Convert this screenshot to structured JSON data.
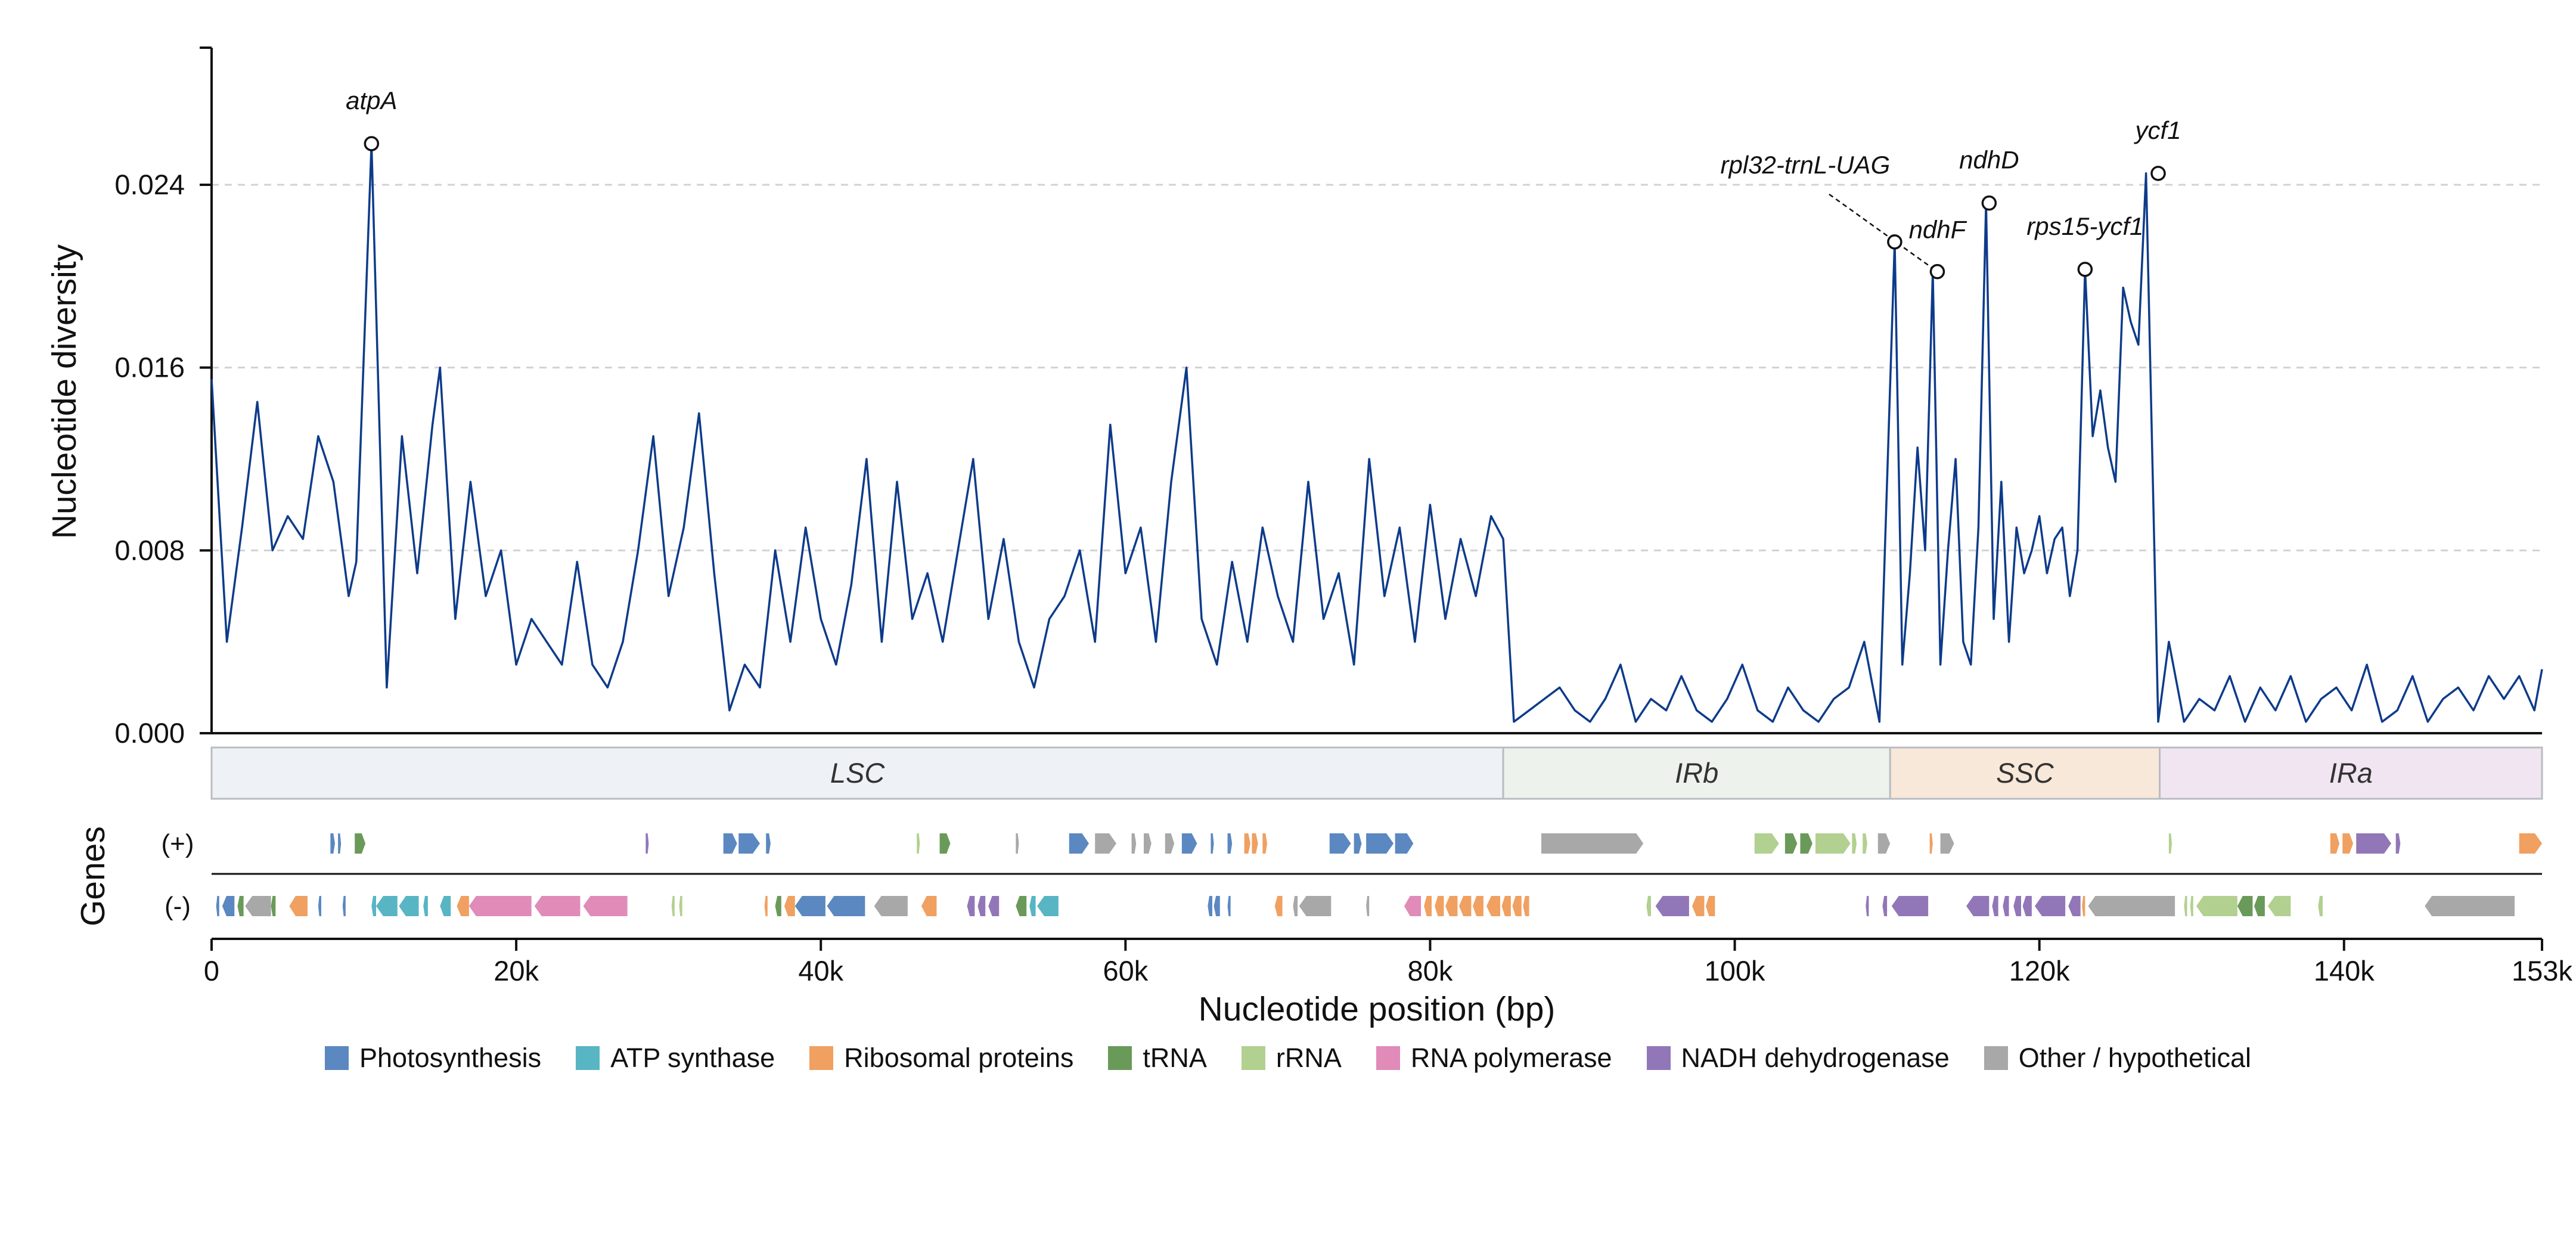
{
  "chart_data": {
    "type": "line",
    "title": "",
    "xlabel": "Nucleotide position (bp)",
    "ylabel": "Nucleotide diversity",
    "xlim": [
      0,
      153000
    ],
    "ylim": [
      0,
      0.03
    ],
    "x_ticks": [
      0,
      20000,
      40000,
      60000,
      80000,
      100000,
      120000,
      140000,
      153000
    ],
    "x_tick_labels": [
      "0",
      "20k",
      "40k",
      "60k",
      "80k",
      "100k",
      "120k",
      "140k",
      "153k"
    ],
    "y_ticks": [
      0,
      0.008,
      0.016,
      0.024
    ],
    "y_tick_labels": [
      "0.000",
      "0.008",
      "0.016",
      "0.024"
    ],
    "grid": "horizontal dashed",
    "series": [
      {
        "x": [
          0,
          1000,
          2000,
          3000,
          4000,
          5000,
          6000,
          7000,
          8000,
          9000,
          9500,
          10500,
          11500,
          12500,
          13500,
          14500,
          15000,
          16000,
          17000,
          18000,
          19000,
          20000,
          21000,
          22000,
          23000,
          24000,
          25000,
          26000,
          27000,
          28000,
          29000,
          30000,
          31000,
          32000,
          33000,
          34000,
          35000,
          36000,
          37000,
          38000,
          39000,
          40000,
          41000,
          42000,
          43000,
          44000,
          45000,
          46000,
          47000,
          48000,
          49000,
          50000,
          51000,
          52000,
          53000,
          54000,
          55000,
          56000,
          57000,
          58000,
          59000,
          60000,
          61000,
          62000,
          63000,
          64000,
          65000,
          66000,
          67000,
          68000,
          69000,
          70000,
          71000,
          72000,
          73000,
          74000,
          75000,
          76000,
          77000,
          78000,
          79000,
          80000,
          81000,
          82000,
          83000,
          84000,
          84800,
          85500,
          86500,
          87500,
          88500,
          89500,
          90500,
          91500,
          92500,
          93500,
          94500,
          95500,
          96500,
          97500,
          98500,
          99500,
          100500,
          101500,
          102500,
          103500,
          104500,
          105500,
          106500,
          107500,
          108500,
          109500,
          110500,
          111000,
          111500,
          112000,
          112500,
          113000,
          113500,
          114000,
          114500,
          115000,
          115500,
          116000,
          116500,
          117000,
          117500,
          118000,
          118500,
          119000,
          119500,
          120000,
          120500,
          121000,
          121500,
          122000,
          122500,
          123000,
          123500,
          124000,
          124500,
          125000,
          125500,
          126000,
          126500,
          127000,
          127800,
          128500,
          129500,
          130500,
          131500,
          132500,
          133500,
          134500,
          135500,
          136500,
          137500,
          138500,
          139500,
          140500,
          141500,
          142500,
          143500,
          144500,
          145500,
          146500,
          147500,
          148500,
          149500,
          150500,
          151500,
          152500,
          153000
        ],
        "y": [
          0.0155,
          0.004,
          0.009,
          0.0145,
          0.008,
          0.0095,
          0.0085,
          0.013,
          0.011,
          0.006,
          0.0075,
          0.0258,
          0.002,
          0.013,
          0.007,
          0.0135,
          0.016,
          0.005,
          0.011,
          0.006,
          0.008,
          0.003,
          0.005,
          0.004,
          0.003,
          0.0075,
          0.003,
          0.002,
          0.004,
          0.008,
          0.013,
          0.006,
          0.009,
          0.014,
          0.007,
          0.001,
          0.003,
          0.002,
          0.008,
          0.004,
          0.009,
          0.005,
          0.003,
          0.0065,
          0.012,
          0.004,
          0.011,
          0.005,
          0.007,
          0.004,
          0.008,
          0.012,
          0.005,
          0.0085,
          0.004,
          0.002,
          0.005,
          0.006,
          0.008,
          0.004,
          0.0135,
          0.007,
          0.009,
          0.004,
          0.011,
          0.016,
          0.005,
          0.003,
          0.0075,
          0.004,
          0.009,
          0.006,
          0.004,
          0.011,
          0.005,
          0.007,
          0.003,
          0.012,
          0.006,
          0.009,
          0.004,
          0.01,
          0.005,
          0.0085,
          0.006,
          0.0095,
          0.0085,
          0.0005,
          0.001,
          0.0015,
          0.002,
          0.001,
          0.0005,
          0.0015,
          0.003,
          0.0005,
          0.0015,
          0.001,
          0.0025,
          0.001,
          0.0005,
          0.0015,
          0.003,
          0.001,
          0.0005,
          0.002,
          0.001,
          0.0005,
          0.0015,
          0.002,
          0.004,
          0.0005,
          0.0215,
          0.003,
          0.007,
          0.0125,
          0.008,
          0.0202,
          0.003,
          0.008,
          0.012,
          0.004,
          0.003,
          0.009,
          0.0232,
          0.005,
          0.011,
          0.004,
          0.009,
          0.007,
          0.008,
          0.0095,
          0.007,
          0.0085,
          0.009,
          0.006,
          0.008,
          0.0203,
          0.013,
          0.015,
          0.0125,
          0.011,
          0.0195,
          0.018,
          0.017,
          0.0245,
          0.0005,
          0.004,
          0.0005,
          0.0015,
          0.001,
          0.0025,
          0.0005,
          0.002,
          0.001,
          0.0025,
          0.0005,
          0.0015,
          0.002,
          0.001,
          0.003,
          0.0005,
          0.001,
          0.0025,
          0.0005,
          0.0015,
          0.002,
          0.001,
          0.0025,
          0.0015,
          0.0025,
          0.001,
          0.0028
        ]
      }
    ],
    "peaks": [
      {
        "label": "atpA",
        "x": 10500,
        "y": 0.0258
      },
      {
        "label": "rpl32-trnL-UAG",
        "x": 110500,
        "y": 0.0215
      },
      {
        "label": "ndhF",
        "x": 113300,
        "y": 0.0202
      },
      {
        "label": "ndhD",
        "x": 116700,
        "y": 0.0232
      },
      {
        "label": "rps15-ycf1",
        "x": 123000,
        "y": 0.0203
      },
      {
        "label": "ycf1",
        "x": 127800,
        "y": 0.0245
      }
    ],
    "regions": [
      {
        "label": "LSC",
        "start": 0,
        "end": 84800,
        "color": "#eef2f6"
      },
      {
        "label": "IRb",
        "start": 84800,
        "end": 110200,
        "color": "#edf3ec"
      },
      {
        "label": "SSC",
        "start": 110200,
        "end": 127900,
        "color": "#f8e8d9"
      },
      {
        "label": "IRa",
        "start": 127900,
        "end": 153000,
        "color": "#f0e5f0"
      }
    ],
    "genes_axis_label": "Genes",
    "strand_labels": {
      "plus": "(+)",
      "minus": "(-)"
    },
    "gene_categories": [
      {
        "name": "Photosynthesis",
        "color": "#5b88c0"
      },
      {
        "name": "ATP synthase",
        "color": "#58b5c4"
      },
      {
        "name": "Ribosomal proteins",
        "color": "#f0a061"
      },
      {
        "name": "tRNA",
        "color": "#6a9a59"
      },
      {
        "name": "rRNA",
        "color": "#b2d08f"
      },
      {
        "name": "RNA polymerase",
        "color": "#e08bb8"
      },
      {
        "name": "NADH dehydrogenase",
        "color": "#9277b8"
      },
      {
        "name": "Other / hypothetical",
        "color": "#a8a8a8"
      }
    ],
    "genes_plus": [
      [
        7800,
        8100,
        0
      ],
      [
        8300,
        8500,
        0
      ],
      [
        9400,
        10100,
        3
      ],
      [
        28500,
        28700,
        6
      ],
      [
        33600,
        34500,
        0
      ],
      [
        34600,
        36000,
        0
      ],
      [
        36400,
        36700,
        0
      ],
      [
        46300,
        46500,
        4
      ],
      [
        47800,
        48500,
        3
      ],
      [
        52800,
        53000,
        7
      ],
      [
        56300,
        57600,
        0
      ],
      [
        58000,
        59400,
        7
      ],
      [
        60400,
        60700,
        7
      ],
      [
        61200,
        61700,
        7
      ],
      [
        62600,
        63200,
        7
      ],
      [
        63700,
        64700,
        0
      ],
      [
        65600,
        65800,
        0
      ],
      [
        66700,
        67000,
        0
      ],
      [
        67800,
        68200,
        2
      ],
      [
        68300,
        68700,
        2
      ],
      [
        69000,
        69300,
        2
      ],
      [
        73400,
        74800,
        0
      ],
      [
        75000,
        75500,
        0
      ],
      [
        75800,
        77600,
        0
      ],
      [
        77700,
        78900,
        0
      ],
      [
        87300,
        94000,
        7
      ],
      [
        101300,
        102900,
        4
      ],
      [
        103300,
        104100,
        3
      ],
      [
        104300,
        105100,
        3
      ],
      [
        105300,
        107600,
        4
      ],
      [
        107700,
        108000,
        4
      ],
      [
        108400,
        108700,
        4
      ],
      [
        109400,
        110200,
        7
      ],
      [
        112800,
        113000,
        2
      ],
      [
        113500,
        114400,
        7
      ],
      [
        128500,
        128700,
        4
      ],
      [
        139100,
        139700,
        2
      ],
      [
        139900,
        140600,
        2
      ],
      [
        140800,
        143100,
        6
      ],
      [
        143400,
        143700,
        6
      ],
      [
        151500,
        153000,
        2
      ]
    ],
    "genes_minus": [
      [
        300,
        500,
        0
      ],
      [
        700,
        1500,
        0
      ],
      [
        1700,
        2100,
        3
      ],
      [
        2200,
        3900,
        7
      ],
      [
        3900,
        4200,
        3
      ],
      [
        5100,
        6300,
        2
      ],
      [
        7000,
        7200,
        0
      ],
      [
        8600,
        8800,
        0
      ],
      [
        10500,
        10800,
        1
      ],
      [
        10800,
        12200,
        1
      ],
      [
        12300,
        13600,
        1
      ],
      [
        13900,
        14200,
        1
      ],
      [
        15000,
        15700,
        1
      ],
      [
        16100,
        16900,
        2
      ],
      [
        16900,
        21000,
        5
      ],
      [
        21200,
        24200,
        5
      ],
      [
        24400,
        27300,
        5
      ],
      [
        30200,
        30400,
        4
      ],
      [
        30700,
        30900,
        4
      ],
      [
        36300,
        36500,
        2
      ],
      [
        37000,
        37400,
        3
      ],
      [
        37600,
        38300,
        2
      ],
      [
        38300,
        40300,
        0
      ],
      [
        40400,
        42900,
        0
      ],
      [
        43500,
        45700,
        7
      ],
      [
        46600,
        47600,
        2
      ],
      [
        49600,
        50100,
        6
      ],
      [
        50300,
        50800,
        6
      ],
      [
        51000,
        51700,
        6
      ],
      [
        52800,
        53500,
        3
      ],
      [
        53700,
        54100,
        1
      ],
      [
        54200,
        55600,
        1
      ],
      [
        65400,
        65700,
        0
      ],
      [
        65800,
        66200,
        0
      ],
      [
        66700,
        66900,
        0
      ],
      [
        69800,
        70300,
        2
      ],
      [
        71000,
        71300,
        7
      ],
      [
        71400,
        73500,
        7
      ],
      [
        75800,
        76000,
        7
      ],
      [
        78300,
        79400,
        5
      ],
      [
        79600,
        80100,
        2
      ],
      [
        80300,
        80900,
        2
      ],
      [
        81000,
        81800,
        2
      ],
      [
        81900,
        82700,
        2
      ],
      [
        82800,
        83500,
        2
      ],
      [
        83700,
        84600,
        2
      ],
      [
        84700,
        85300,
        2
      ],
      [
        85400,
        86000,
        2
      ],
      [
        86100,
        86500,
        2
      ],
      [
        94200,
        94500,
        4
      ],
      [
        94800,
        97000,
        6
      ],
      [
        97200,
        98000,
        2
      ],
      [
        98100,
        98700,
        2
      ],
      [
        108600,
        108800,
        6
      ],
      [
        109700,
        110000,
        6
      ],
      [
        110300,
        112700,
        6
      ],
      [
        115200,
        116700,
        6
      ],
      [
        116900,
        117300,
        6
      ],
      [
        117600,
        118000,
        6
      ],
      [
        118300,
        118800,
        6
      ],
      [
        118900,
        119500,
        6
      ],
      [
        119700,
        121700,
        6
      ],
      [
        121900,
        122700,
        6
      ],
      [
        122800,
        123000,
        2
      ],
      [
        123200,
        128900,
        7
      ],
      [
        129500,
        129700,
        4
      ],
      [
        129900,
        130100,
        4
      ],
      [
        130300,
        133000,
        4
      ],
      [
        133000,
        134000,
        3
      ],
      [
        134100,
        134800,
        3
      ],
      [
        135000,
        136500,
        4
      ],
      [
        138300,
        138600,
        4
      ],
      [
        145300,
        151200,
        7
      ]
    ]
  }
}
